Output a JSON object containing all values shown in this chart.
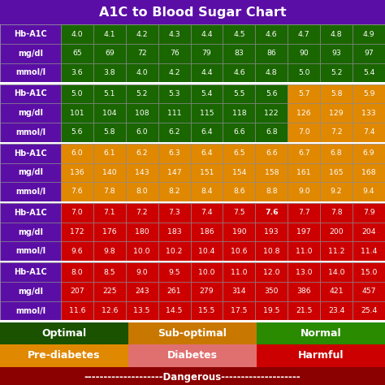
{
  "title": "A1C to Blood Sugar Chart",
  "title_bg": "#5b0ea6",
  "sections": [
    {
      "rows": [
        {
          "label": "Hb-A1C",
          "values": [
            "4.0",
            "4.1",
            "4.2",
            "4.3",
            "4.4",
            "4.5",
            "4.6",
            "4.7",
            "4.8",
            "4.9"
          ]
        },
        {
          "label": "mg/dl",
          "values": [
            "65",
            "69",
            "72",
            "76",
            "79",
            "83",
            "86",
            "90",
            "93",
            "97"
          ]
        },
        {
          "label": "mmol/l",
          "values": [
            "3.6",
            "3.8",
            "4.0",
            "4.2",
            "4.4",
            "4.6",
            "4.8",
            "5.0",
            "5.2",
            "5.4"
          ]
        }
      ],
      "cell_colors": [
        "#1a6600",
        "#1a6600",
        "#1a6600",
        "#1a6600",
        "#1a6600",
        "#1a6600",
        "#1a6600",
        "#1a6600",
        "#1a6600",
        "#1a6600"
      ]
    },
    {
      "rows": [
        {
          "label": "Hb-A1C",
          "values": [
            "5.0",
            "5.1",
            "5.2",
            "5.3",
            "5.4",
            "5.5",
            "5.6",
            "5.7",
            "5.8",
            "5.9"
          ]
        },
        {
          "label": "mg/dl",
          "values": [
            "101",
            "104",
            "108",
            "111",
            "115",
            "118",
            "122",
            "126",
            "129",
            "133"
          ]
        },
        {
          "label": "mmol/l",
          "values": [
            "5.6",
            "5.8",
            "6.0",
            "6.2",
            "6.4",
            "6.6",
            "6.8",
            "7.0",
            "7.2",
            "7.4"
          ]
        }
      ],
      "cell_colors": [
        "#1a6600",
        "#1a6600",
        "#1a6600",
        "#1a6600",
        "#1a6600",
        "#1a6600",
        "#1a6600",
        "#e08800",
        "#e08800",
        "#e08800"
      ]
    },
    {
      "rows": [
        {
          "label": "Hb-A1C",
          "values": [
            "6.0",
            "6.1",
            "6.2",
            "6.3",
            "6.4",
            "6.5",
            "6.6",
            "6.7",
            "6.8",
            "6.9"
          ]
        },
        {
          "label": "mg/dl",
          "values": [
            "136",
            "140",
            "143",
            "147",
            "151",
            "154",
            "158",
            "161",
            "165",
            "168"
          ]
        },
        {
          "label": "mmol/l",
          "values": [
            "7.6",
            "7.8",
            "8.0",
            "8.2",
            "8.4",
            "8.6",
            "8.8",
            "9.0",
            "9.2",
            "9.4"
          ]
        }
      ],
      "cell_colors": [
        "#e08800",
        "#e08800",
        "#e08800",
        "#e08800",
        "#e08800",
        "#e08800",
        "#e08800",
        "#e08800",
        "#e08800",
        "#e08800"
      ]
    },
    {
      "rows": [
        {
          "label": "Hb-A1C",
          "values": [
            "7.0",
            "7.1",
            "7.2",
            "7.3",
            "7.4",
            "7.5",
            "7.6",
            "7.7",
            "7.8",
            "7.9"
          ]
        },
        {
          "label": "mg/dl",
          "values": [
            "172",
            "176",
            "180",
            "183",
            "186",
            "190",
            "193",
            "197",
            "200",
            "204"
          ]
        },
        {
          "label": "mmol/l",
          "values": [
            "9.6",
            "9.8",
            "10.0",
            "10.2",
            "10.4",
            "10.6",
            "10.8",
            "11.0",
            "11.2",
            "11.4"
          ]
        }
      ],
      "cell_colors": [
        "#cc0000",
        "#cc0000",
        "#cc0000",
        "#cc0000",
        "#cc0000",
        "#cc0000",
        "#cc0000",
        "#cc0000",
        "#cc0000",
        "#cc0000"
      ],
      "bold_col": 6
    },
    {
      "rows": [
        {
          "label": "Hb-A1C",
          "values": [
            "8.0",
            "8.5",
            "9.0",
            "9.5",
            "10.0",
            "11.0",
            "12.0",
            "13.0",
            "14.0",
            "15.0"
          ]
        },
        {
          "label": "mg/dl",
          "values": [
            "207",
            "225",
            "243",
            "261",
            "279",
            "314",
            "350",
            "386",
            "421",
            "457"
          ]
        },
        {
          "label": "mmol/l",
          "values": [
            "11.6",
            "12.6",
            "13.5",
            "14.5",
            "15.5",
            "17.5",
            "19.5",
            "21.5",
            "23.4",
            "25.4"
          ]
        }
      ],
      "cell_colors": [
        "#cc0000",
        "#cc0000",
        "#cc0000",
        "#cc0000",
        "#cc0000",
        "#cc0000",
        "#cc0000",
        "#cc0000",
        "#cc0000",
        "#cc0000"
      ]
    }
  ],
  "legend_row1": [
    {
      "text": "Optimal",
      "bg": "#1a5200",
      "fg": "white"
    },
    {
      "text": "Sub-optimal",
      "bg": "#c87800",
      "fg": "white"
    },
    {
      "text": "Normal",
      "bg": "#2a8a00",
      "fg": "white"
    }
  ],
  "legend_row2": [
    {
      "text": "Pre-diabetes",
      "bg": "#e08800",
      "fg": "white"
    },
    {
      "text": "Diabetes",
      "bg": "#e07070",
      "fg": "white"
    },
    {
      "text": "Harmful",
      "bg": "#cc0000",
      "fg": "white"
    }
  ],
  "legend_row3_text": "--------------------Dangerous--------------------",
  "legend_row3_bg": "#8b0000",
  "label_col_bg": "#5b0ea6",
  "separator_color": "#ffffff",
  "border_color": "#888888"
}
